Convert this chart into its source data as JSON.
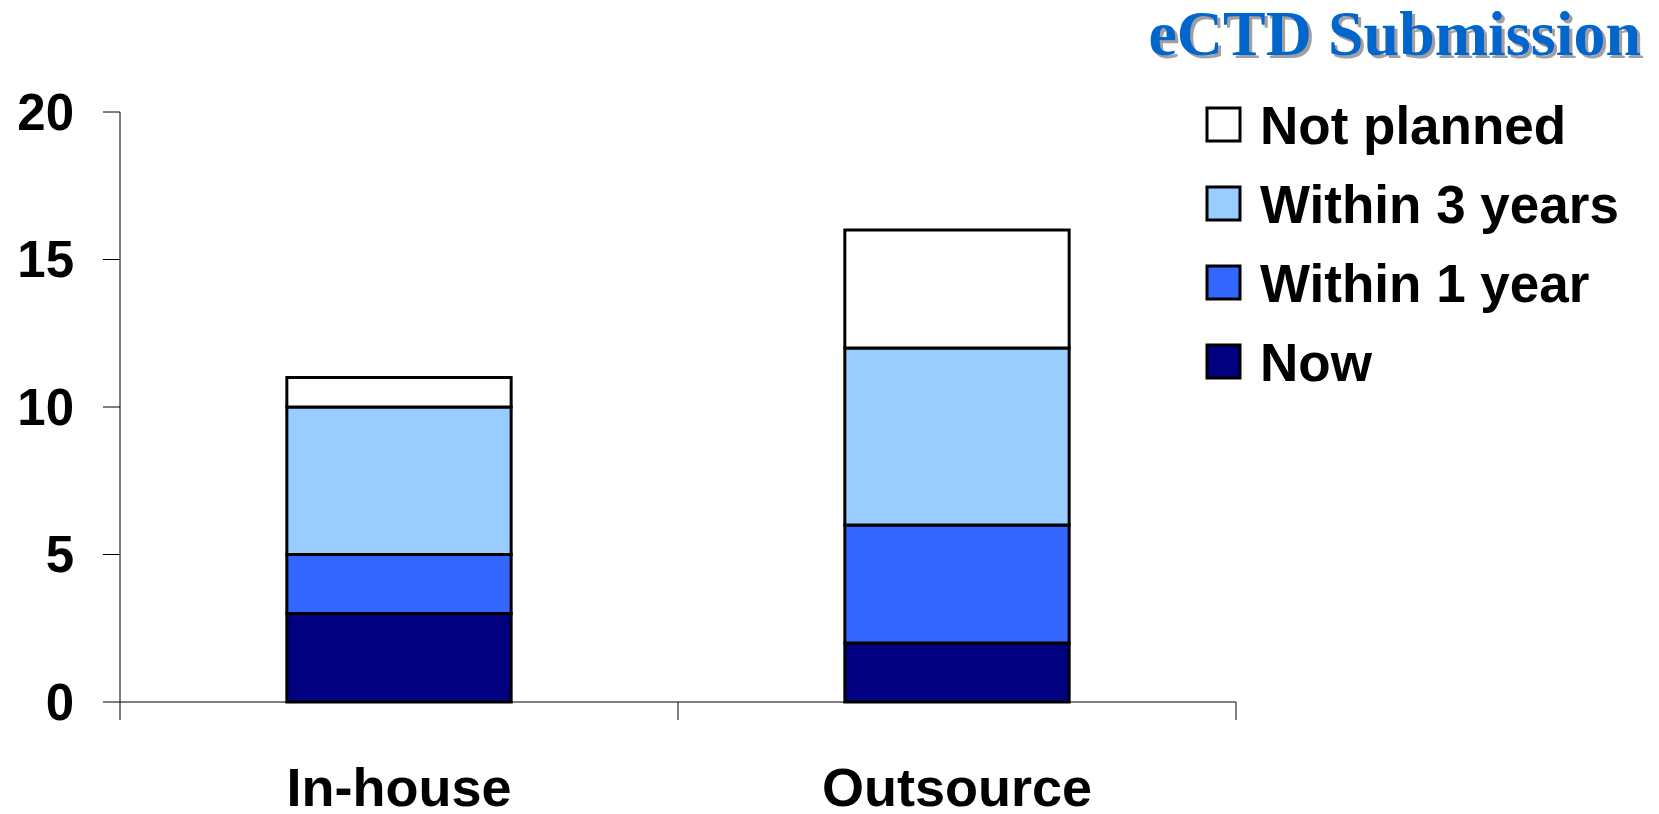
{
  "chart_data": {
    "type": "bar",
    "title": "eCTD Submission",
    "categories": [
      "In-house",
      "Outsource"
    ],
    "stacked": true,
    "series": [
      {
        "name": "Now",
        "color": "#000080",
        "values": [
          3,
          2
        ]
      },
      {
        "name": "Within 1 year",
        "color": "#3366ff",
        "values": [
          2,
          4
        ]
      },
      {
        "name": "Within 3 years",
        "color": "#99ccff",
        "values": [
          5,
          6
        ]
      },
      {
        "name": "Not planned",
        "color": "#ffffff",
        "values": [
          1,
          4
        ]
      }
    ],
    "ylim": [
      0,
      20
    ],
    "yticks": [
      0,
      5,
      10,
      15,
      20
    ],
    "legend": "right"
  }
}
